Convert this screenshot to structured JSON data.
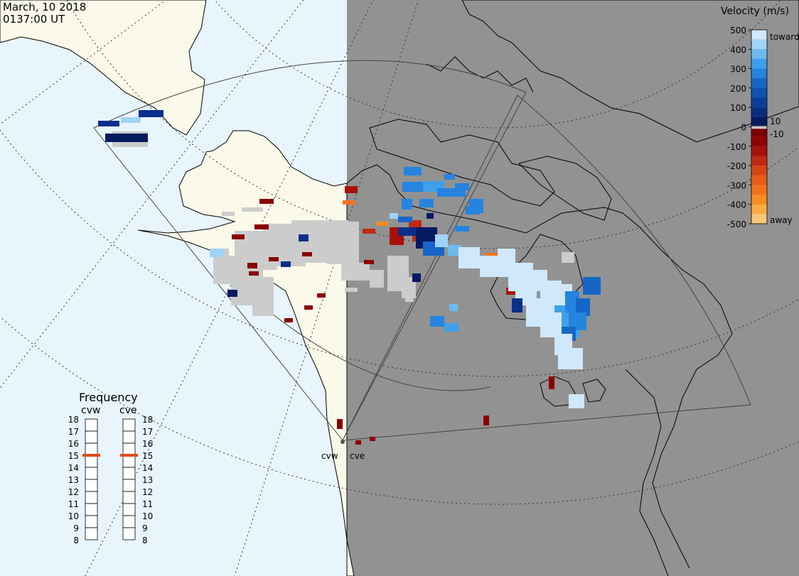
{
  "header": {
    "date": "March, 10 2018",
    "time": "0137:00 UT"
  },
  "velocity_legend": {
    "title": "Velocity (m/s)",
    "toward_label": "toward",
    "away_label": "away",
    "ticks": [
      "500",
      "400",
      "300",
      "200",
      "100",
      "0",
      "-100",
      "-200",
      "-300",
      "-400",
      "-500"
    ],
    "small_ticks": [
      "10",
      "-10"
    ]
  },
  "frequency_panel": {
    "title": "Frequency",
    "radars": [
      "cvw",
      "cve"
    ],
    "scale": [
      "18",
      "17",
      "16",
      "15",
      "14",
      "13",
      "12",
      "11",
      "10",
      "9",
      "8"
    ],
    "selected_mhz": [
      15,
      15
    ],
    "marker_color": "#e04a1a"
  },
  "radar_sites": {
    "labels": [
      "cvw",
      "cve"
    ]
  },
  "colors": {
    "ocean": "#e9f5fd",
    "land_day": "#fbf9ea",
    "night": "#929292",
    "gray_scatter": "#cccccc"
  }
}
